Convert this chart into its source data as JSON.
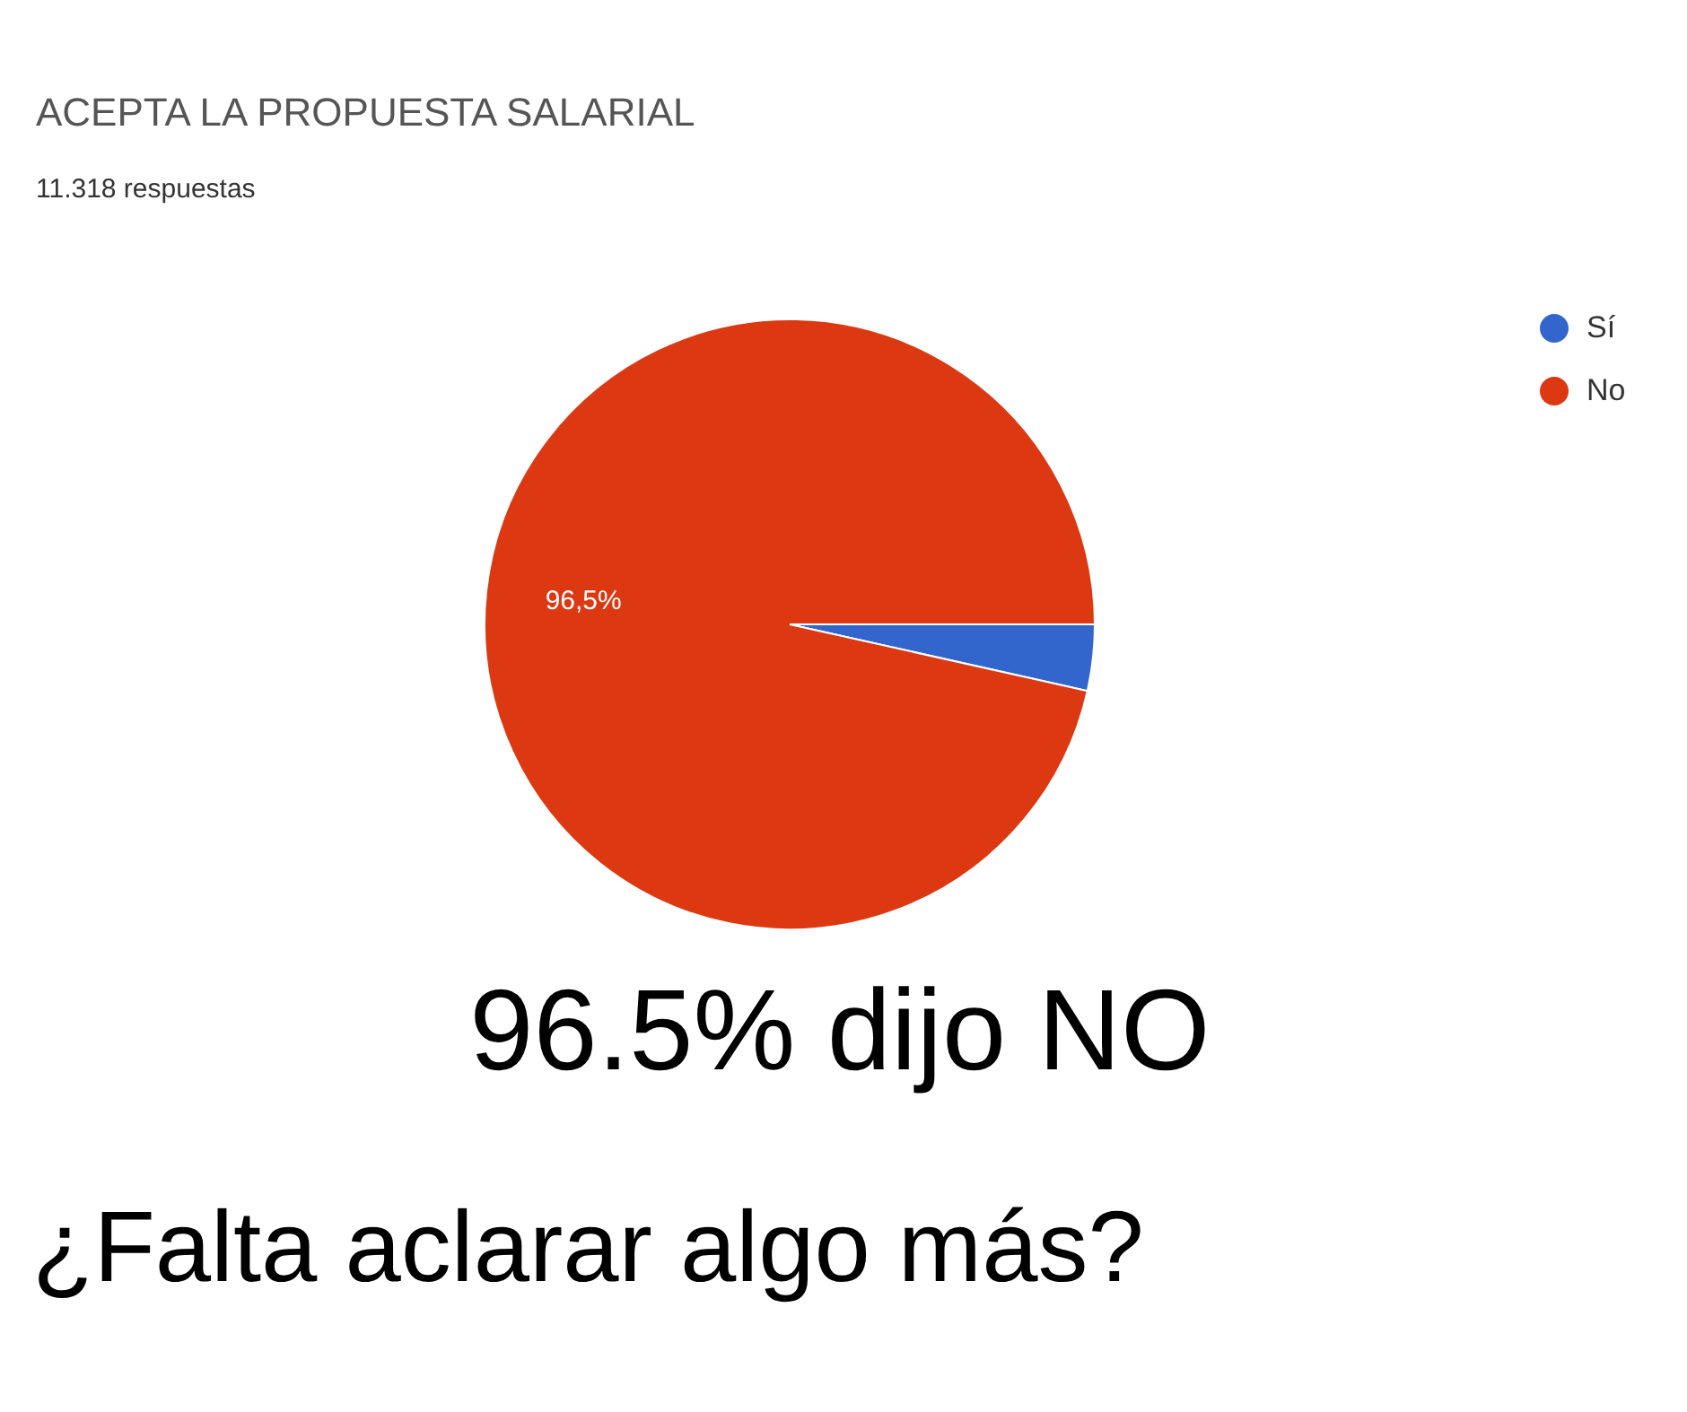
{
  "chart_data": {
    "type": "pie",
    "title": "ACEPTA LA PROPUESTA SALARIAL",
    "subtitle": "11.318 respuestas",
    "categories": [
      "Sí",
      "No"
    ],
    "values": [
      3.5,
      96.5
    ],
    "colors": [
      "#3366cc",
      "#dc3912"
    ],
    "value_labels": [
      null,
      "96,5%"
    ],
    "legend": "top right",
    "annotations": [
      "96.5% dijo NO",
      "¿Falta aclarar algo más?"
    ]
  }
}
